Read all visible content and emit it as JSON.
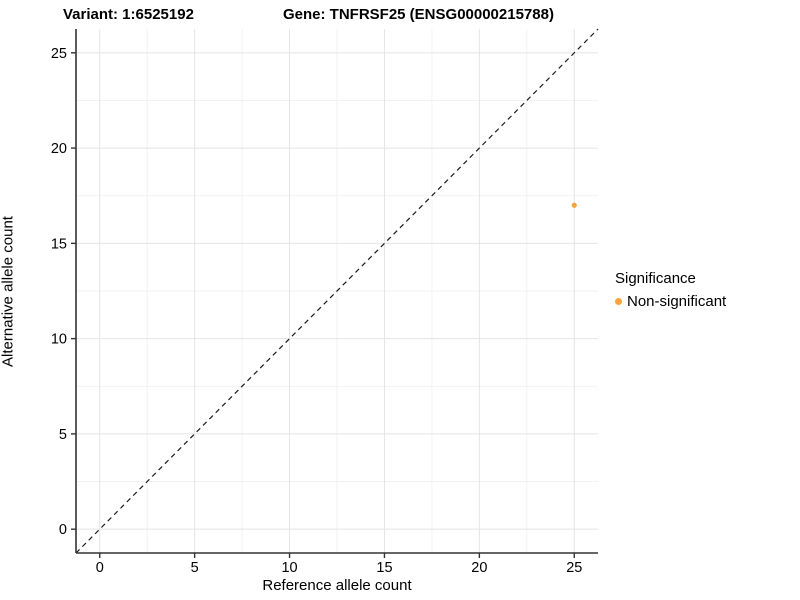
{
  "chart_data": {
    "type": "scatter",
    "title_variant": "Variant: 1:6525192",
    "title_gene": "Gene: TNFRSF25 (ENSG00000215788)",
    "xlabel": "Reference allele count",
    "ylabel": "Alternative allele count",
    "xlim": [
      -1.25,
      26.25
    ],
    "ylim": [
      -1.25,
      26.25
    ],
    "xticks": [
      0,
      5,
      10,
      15,
      20,
      25
    ],
    "yticks": [
      0,
      5,
      10,
      15,
      20,
      25
    ],
    "minor_ticks": [
      2.5,
      7.5,
      12.5,
      17.5,
      22.5
    ],
    "grid": "on",
    "identity_line": {
      "style": "dashed",
      "slope": 1,
      "intercept": 0
    },
    "points": [
      {
        "x": 25,
        "y": 17,
        "series": "Non-significant"
      }
    ],
    "legend": {
      "position": "right",
      "title": "Significance",
      "entries": [
        {
          "label": "Non-significant",
          "color": "#FAA43C"
        }
      ]
    },
    "colors": {
      "point": "#FAA43C",
      "grid_major": "#E4E4E4",
      "grid_minor": "#F1F1F1",
      "axis_line": "#333333",
      "tick_label": "#000000",
      "identity_line": "#1A1A1A"
    }
  }
}
